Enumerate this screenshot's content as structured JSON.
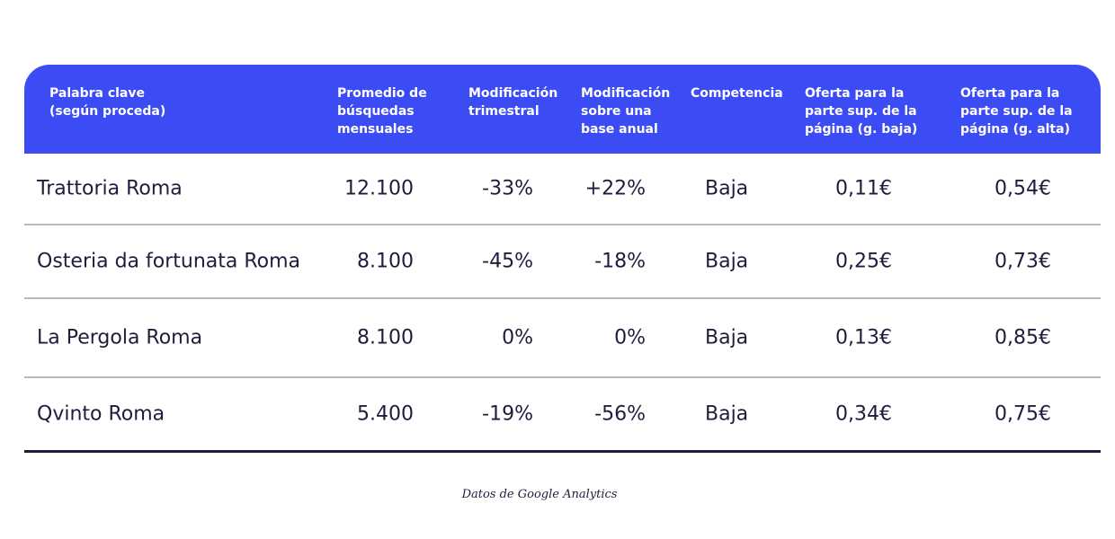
{
  "table": {
    "headers": [
      "Palabra clave\n(según proceda)",
      "Promedio de\nbúsquedas\nmensuales",
      "Modificación\ntrimestral",
      "Modificación\nsobre una\nbase anual",
      "Competencia",
      "Oferta para la\nparte sup. de la\npágina (g. baja)",
      "Oferta para la\nparte sup. de la\npágina (g. alta)"
    ],
    "rows": [
      {
        "keyword": "Trattoria Roma",
        "searches": "12.100",
        "quarterly": "-33%",
        "annual": "+22%",
        "competition": "Baja",
        "bid_low": "0,11€",
        "bid_high": "0,54€"
      },
      {
        "keyword": "Osteria da fortunata Roma",
        "searches": "8.100",
        "quarterly": "-45%",
        "annual": "-18%",
        "competition": "Baja",
        "bid_low": "0,25€",
        "bid_high": "0,73€"
      },
      {
        "keyword": "La Pergola Roma",
        "searches": "8.100",
        "quarterly": "0%",
        "annual": "0%",
        "competition": "Baja",
        "bid_low": "0,13€",
        "bid_high": "0,85€"
      },
      {
        "keyword": "Qvinto Roma",
        "searches": "5.400",
        "quarterly": "-19%",
        "annual": "-56%",
        "competition": "Baja",
        "bid_low": "0,34€",
        "bid_high": "0,75€"
      }
    ]
  },
  "caption": "Datos de Google Analytics",
  "colors": {
    "header_bg": "#3b4cf5",
    "text": "#231a3d",
    "divider": "#b9b9c4"
  }
}
